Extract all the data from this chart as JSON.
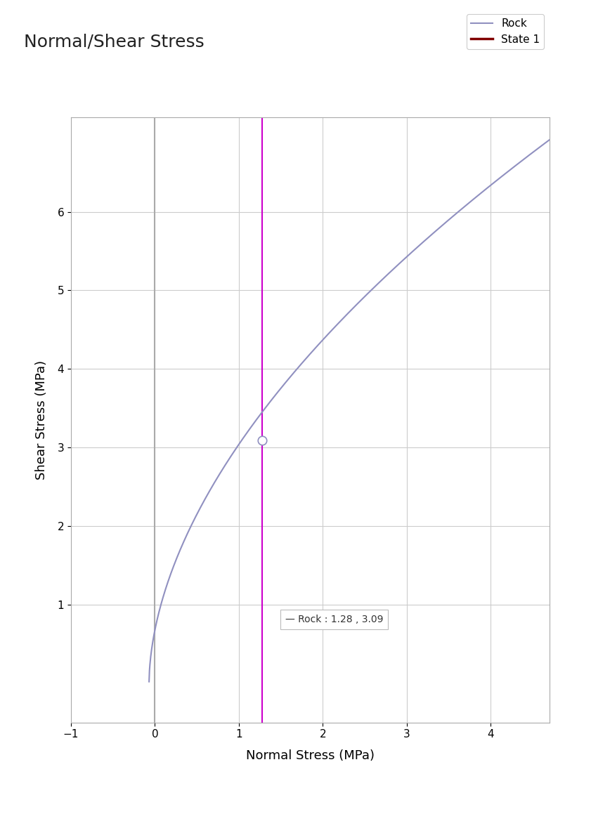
{
  "title": "Normal/Shear Stress",
  "xlabel": "Normal Stress (MPa)",
  "ylabel": "Shear Stress (MPa)",
  "xlim": [
    -1,
    4.7
  ],
  "ylim": [
    -0.5,
    7.2
  ],
  "xticks": [
    -1,
    0,
    1,
    2,
    3,
    4
  ],
  "yticks": [
    1,
    2,
    3,
    4,
    5,
    6
  ],
  "rock_color": "#9090c0",
  "state1_color": "#800000",
  "state1_x": 1.28,
  "gray_vline_x": 0.0,
  "gray_vline_color": "#aaaaaa",
  "magenta_vline_color": "#cc00cc",
  "intersection_x": 1.28,
  "intersection_y": 3.09,
  "tooltip_text": "— Rock : 1.28 , 3.09",
  "tooltip_x": 1.55,
  "tooltip_y": 0.75,
  "background_color": "#ffffff",
  "plot_bg_color": "#ffffff",
  "grid_color": "#cccccc",
  "title_fontsize": 18,
  "axis_label_fontsize": 13,
  "tick_fontsize": 11,
  "legend_fontsize": 11,
  "curve_A": 2.93,
  "curve_C": 0.0696,
  "curve_n": 0.55
}
